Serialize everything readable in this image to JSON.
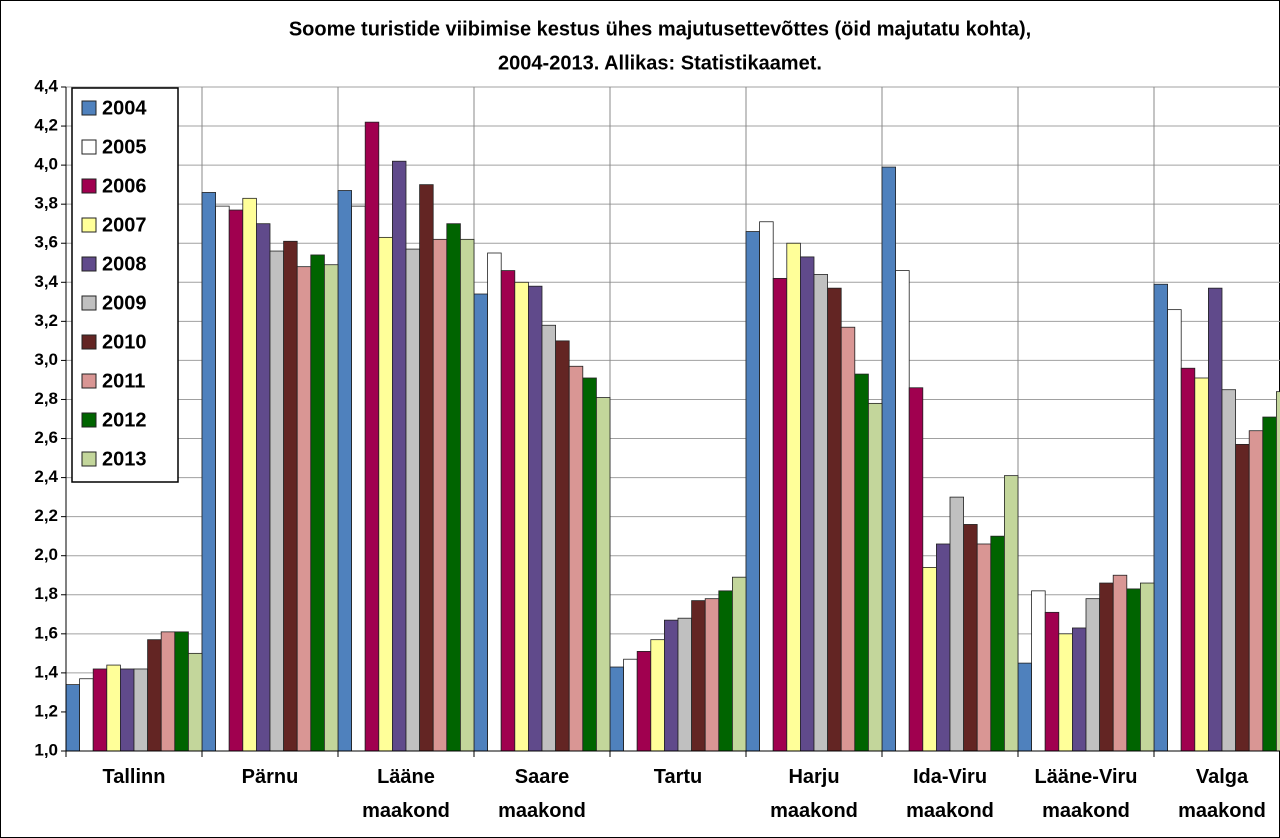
{
  "chart_data": {
    "type": "bar",
    "title": [
      "Soome turistide viibimise kestus ühes majutusettevõttes  (öid majutatu kohta),",
      "2004-2013. Allikas: Statistikaamet."
    ],
    "categories": [
      "Tallinn",
      "Pärnu",
      "Lääne maakond",
      "Saare maakond",
      "Tartu",
      "Harju maakond",
      "Ida-Viru maakond",
      "Lääne-Viru maakond",
      "Valga maakond"
    ],
    "series": [
      {
        "name": "2004",
        "color": "#4f81bd",
        "values": [
          1.34,
          3.86,
          3.87,
          3.34,
          1.43,
          3.66,
          3.99,
          1.45,
          3.39
        ]
      },
      {
        "name": "2005",
        "color": "#ffffff",
        "values": [
          1.37,
          3.79,
          3.79,
          3.55,
          1.47,
          3.71,
          3.46,
          1.82,
          3.26
        ]
      },
      {
        "name": "2006",
        "color": "#a0004f",
        "values": [
          1.42,
          3.77,
          4.22,
          3.46,
          1.51,
          3.42,
          2.86,
          1.71,
          2.96
        ]
      },
      {
        "name": "2007",
        "color": "#ffff99",
        "values": [
          1.44,
          3.83,
          3.63,
          3.4,
          1.57,
          3.6,
          1.94,
          1.6,
          2.91
        ]
      },
      {
        "name": "2008",
        "color": "#604a8b",
        "values": [
          1.42,
          3.7,
          4.02,
          3.38,
          1.67,
          3.53,
          2.06,
          1.63,
          3.37
        ]
      },
      {
        "name": "2009",
        "color": "#c0c0c0",
        "values": [
          1.42,
          3.56,
          3.57,
          3.18,
          1.68,
          3.44,
          2.3,
          1.78,
          2.85
        ]
      },
      {
        "name": "2010",
        "color": "#632523",
        "values": [
          1.57,
          3.61,
          3.9,
          3.1,
          1.77,
          3.37,
          2.16,
          1.86,
          2.57
        ]
      },
      {
        "name": "2011",
        "color": "#d99694",
        "values": [
          1.61,
          3.48,
          3.62,
          2.97,
          1.78,
          3.17,
          2.06,
          1.9,
          2.64
        ]
      },
      {
        "name": "2012",
        "color": "#006400",
        "values": [
          1.61,
          3.54,
          3.7,
          2.91,
          1.82,
          2.93,
          2.1,
          1.83,
          2.71
        ]
      },
      {
        "name": "2013",
        "color": "#c3d69b",
        "values": [
          1.5,
          3.49,
          3.62,
          2.81,
          1.89,
          2.78,
          2.41,
          1.86,
          2.84
        ]
      }
    ],
    "ylim": [
      1.0,
      4.4
    ],
    "yticks": [
      {
        "value": 1.0,
        "label": "1,0"
      },
      {
        "value": 1.2,
        "label": "1,2"
      },
      {
        "value": 1.4,
        "label": "1,4"
      },
      {
        "value": 1.6,
        "label": "1,6"
      },
      {
        "value": 1.8,
        "label": "1,8"
      },
      {
        "value": 2.0,
        "label": "2,0"
      },
      {
        "value": 2.2,
        "label": "2,2"
      },
      {
        "value": 2.4,
        "label": "2,4"
      },
      {
        "value": 2.6,
        "label": "2,6"
      },
      {
        "value": 2.8,
        "label": "2,8"
      },
      {
        "value": 3.0,
        "label": "3,0"
      },
      {
        "value": 3.2,
        "label": "3,2"
      },
      {
        "value": 3.4,
        "label": "3,4"
      },
      {
        "value": 3.6,
        "label": "3,6"
      },
      {
        "value": 3.8,
        "label": "3,8"
      },
      {
        "value": 4.0,
        "label": "4,0"
      },
      {
        "value": 4.2,
        "label": "4,2"
      },
      {
        "value": 4.4,
        "label": "4,4"
      }
    ],
    "grid": true,
    "legend": "top-left"
  }
}
